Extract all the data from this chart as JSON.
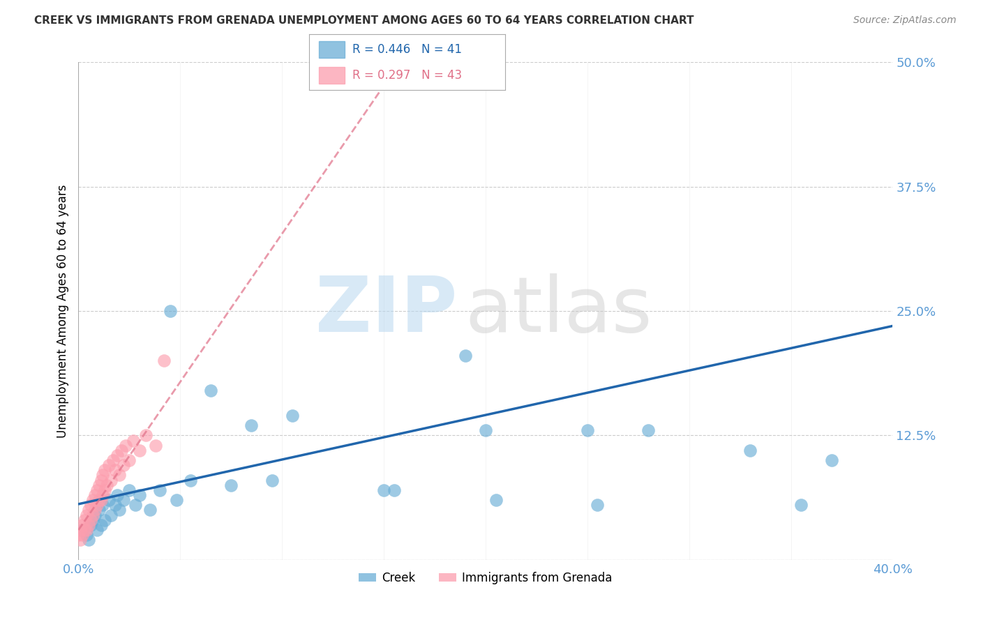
{
  "title": "CREEK VS IMMIGRANTS FROM GRENADA UNEMPLOYMENT AMONG AGES 60 TO 64 YEARS CORRELATION CHART",
  "source": "Source: ZipAtlas.com",
  "ylabel": "Unemployment Among Ages 60 to 64 years",
  "xlim": [
    0.0,
    0.4
  ],
  "ylim": [
    0.0,
    0.5
  ],
  "yticks": [
    0.0,
    0.125,
    0.25,
    0.375,
    0.5
  ],
  "ytick_labels": [
    "",
    "12.5%",
    "25.0%",
    "37.5%",
    "50.0%"
  ],
  "legend_creek_R": "0.446",
  "legend_creek_N": "41",
  "legend_grenada_R": "0.297",
  "legend_grenada_N": "43",
  "creek_color": "#6baed6",
  "grenada_color": "#fc9eae",
  "trendline_creek_color": "#2166ac",
  "trendline_grenada_color": "#e07088",
  "creek_x": [
    0.002,
    0.004,
    0.005,
    0.006,
    0.007,
    0.008,
    0.009,
    0.01,
    0.011,
    0.012,
    0.013,
    0.015,
    0.016,
    0.018,
    0.019,
    0.02,
    0.022,
    0.025,
    0.028,
    0.03,
    0.035,
    0.04,
    0.045,
    0.048,
    0.055,
    0.065,
    0.075,
    0.085,
    0.095,
    0.105,
    0.15,
    0.155,
    0.19,
    0.2,
    0.205,
    0.25,
    0.255,
    0.28,
    0.33,
    0.355,
    0.37
  ],
  "creek_y": [
    0.03,
    0.025,
    0.02,
    0.035,
    0.04,
    0.045,
    0.03,
    0.05,
    0.035,
    0.055,
    0.04,
    0.06,
    0.045,
    0.055,
    0.065,
    0.05,
    0.06,
    0.07,
    0.055,
    0.065,
    0.05,
    0.07,
    0.25,
    0.06,
    0.08,
    0.17,
    0.075,
    0.135,
    0.08,
    0.145,
    0.07,
    0.07,
    0.205,
    0.13,
    0.06,
    0.13,
    0.055,
    0.13,
    0.11,
    0.055,
    0.1
  ],
  "grenada_x": [
    0.0,
    0.001,
    0.001,
    0.002,
    0.002,
    0.003,
    0.003,
    0.004,
    0.004,
    0.005,
    0.005,
    0.006,
    0.006,
    0.007,
    0.007,
    0.008,
    0.008,
    0.009,
    0.009,
    0.01,
    0.01,
    0.011,
    0.011,
    0.012,
    0.012,
    0.013,
    0.013,
    0.014,
    0.015,
    0.016,
    0.017,
    0.018,
    0.019,
    0.02,
    0.021,
    0.022,
    0.023,
    0.025,
    0.027,
    0.03,
    0.033,
    0.038,
    0.042
  ],
  "grenada_y": [
    0.025,
    0.02,
    0.03,
    0.025,
    0.035,
    0.03,
    0.04,
    0.03,
    0.045,
    0.035,
    0.05,
    0.04,
    0.055,
    0.045,
    0.06,
    0.05,
    0.065,
    0.055,
    0.07,
    0.06,
    0.075,
    0.06,
    0.08,
    0.065,
    0.085,
    0.07,
    0.09,
    0.075,
    0.095,
    0.08,
    0.1,
    0.09,
    0.105,
    0.085,
    0.11,
    0.095,
    0.115,
    0.1,
    0.12,
    0.11,
    0.125,
    0.115,
    0.2
  ],
  "creek_trend_x0": 0.0,
  "creek_trend_y0": 0.056,
  "creek_trend_x1": 0.4,
  "creek_trend_y1": 0.235,
  "grenada_trend_x0": 0.0,
  "grenada_trend_y0": 0.03,
  "grenada_trend_x1": 0.042,
  "grenada_trend_y1": 0.155,
  "background_color": "#ffffff",
  "grid_color": "#cccccc",
  "title_color": "#333333",
  "tick_label_color": "#5b9bd5"
}
